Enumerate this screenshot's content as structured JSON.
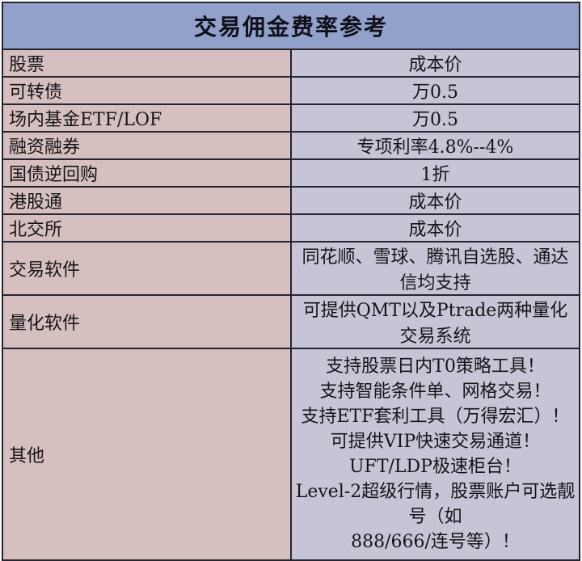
{
  "title": "交易佣金费率参考",
  "table": {
    "rows": [
      {
        "label": "股票",
        "value": "成本价"
      },
      {
        "label": "可转债",
        "value": "万0.5"
      },
      {
        "label": "场内基金ETF/LOF",
        "value": "万0.5"
      },
      {
        "label": "融资融券",
        "value": "专项利率4.8%--4%"
      },
      {
        "label": "国债逆回购",
        "value": "1折"
      },
      {
        "label": "港股通",
        "value": "成本价"
      },
      {
        "label": "北交所",
        "value": "成本价"
      },
      {
        "label": "交易软件",
        "value": "同花顺、雪球、腾讯自选股、通达信均支持"
      },
      {
        "label": "量化软件",
        "value": "可提供QMT以及Ptrade两种量化交易系统"
      },
      {
        "label": "其他",
        "value": "支持股票日内T0策略工具！\n支持智能条件单、网格交易！\n支持ETF套利工具（万得宏汇）！\n可提供VIP快速交易通道！UFT/LDP极速柜台！\nLevel-2超级行情，股票账户可选靓号（如\n888/666/连号等）！"
      }
    ]
  },
  "colors": {
    "header_bg": "#92a1c9",
    "label_column_bg": "#d6bfbf",
    "value_column_bg": "#c7c5d5",
    "border": "#26242e",
    "text": "#141418",
    "page_bg": "#ffffff"
  }
}
